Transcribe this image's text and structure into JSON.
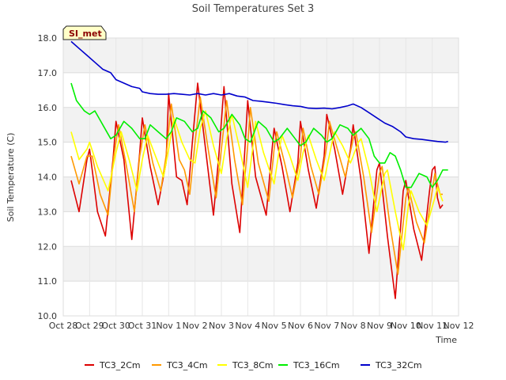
{
  "chart_data": {
    "type": "line",
    "title": "Soil Temperatures Set 3",
    "xlabel": "Time",
    "ylabel": "Soil Temperature (C)",
    "station_label": "SI_met",
    "ylim": [
      10.0,
      18.0
    ],
    "y_ticks": [
      "10.0",
      "11.0",
      "12.0",
      "13.0",
      "14.0",
      "15.0",
      "16.0",
      "17.0",
      "18.0"
    ],
    "xlim": [
      0,
      15
    ],
    "x_ticks": [
      "Oct 28",
      "Oct 29",
      "Oct 30",
      "Oct 31",
      "Nov 1",
      "Nov 2",
      "Nov 3",
      "Nov 4",
      "Nov 5",
      "Nov 6",
      "Nov 7",
      "Nov 8",
      "Nov 9",
      "Nov 10",
      "Nov 11",
      "Nov 12"
    ],
    "x_unit": "days after Oct 28 (tick i = day i)",
    "grid": true,
    "legend_position": "bottom",
    "series": [
      {
        "name": "TC3_2Cm",
        "color": "#dd0000",
        "points": [
          [
            0.3,
            13.9
          ],
          [
            0.6,
            13.0
          ],
          [
            0.9,
            14.5
          ],
          [
            1.0,
            14.8
          ],
          [
            1.3,
            13.0
          ],
          [
            1.6,
            12.3
          ],
          [
            1.9,
            14.6
          ],
          [
            2.0,
            15.6
          ],
          [
            2.3,
            14.5
          ],
          [
            2.6,
            12.2
          ],
          [
            2.9,
            14.7
          ],
          [
            3.0,
            15.7
          ],
          [
            3.3,
            14.3
          ],
          [
            3.6,
            13.2
          ],
          [
            3.9,
            14.4
          ],
          [
            4.0,
            16.4
          ],
          [
            4.3,
            14.0
          ],
          [
            4.5,
            13.9
          ],
          [
            4.7,
            13.2
          ],
          [
            4.9,
            15.0
          ],
          [
            5.1,
            16.7
          ],
          [
            5.4,
            14.8
          ],
          [
            5.7,
            12.9
          ],
          [
            5.9,
            14.6
          ],
          [
            6.1,
            16.6
          ],
          [
            6.4,
            13.8
          ],
          [
            6.7,
            12.4
          ],
          [
            6.9,
            14.9
          ],
          [
            7.0,
            16.2
          ],
          [
            7.3,
            14.0
          ],
          [
            7.7,
            12.9
          ],
          [
            7.9,
            14.6
          ],
          [
            8.0,
            15.4
          ],
          [
            8.3,
            14.3
          ],
          [
            8.6,
            13.0
          ],
          [
            8.9,
            14.4
          ],
          [
            9.0,
            15.6
          ],
          [
            9.3,
            14.2
          ],
          [
            9.6,
            13.1
          ],
          [
            9.9,
            14.6
          ],
          [
            10.0,
            15.8
          ],
          [
            10.3,
            14.8
          ],
          [
            10.6,
            13.5
          ],
          [
            10.9,
            14.8
          ],
          [
            11.0,
            15.5
          ],
          [
            11.3,
            13.9
          ],
          [
            11.6,
            11.8
          ],
          [
            11.9,
            14.2
          ],
          [
            12.0,
            14.4
          ],
          [
            12.3,
            12.3
          ],
          [
            12.6,
            10.5
          ],
          [
            12.9,
            13.6
          ],
          [
            13.0,
            13.9
          ],
          [
            13.3,
            12.5
          ],
          [
            13.6,
            11.6
          ],
          [
            13.9,
            13.6
          ],
          [
            14.0,
            14.2
          ],
          [
            14.1,
            14.3
          ],
          [
            14.2,
            13.4
          ],
          [
            14.3,
            13.1
          ],
          [
            14.4,
            13.2
          ]
        ]
      },
      {
        "name": "TC3_4Cm",
        "color": "#ff9900",
        "points": [
          [
            0.3,
            14.6
          ],
          [
            0.6,
            13.8
          ],
          [
            0.9,
            14.6
          ],
          [
            1.1,
            14.6
          ],
          [
            1.4,
            13.5
          ],
          [
            1.7,
            12.9
          ],
          [
            1.9,
            14.5
          ],
          [
            2.1,
            15.5
          ],
          [
            2.4,
            14.3
          ],
          [
            2.7,
            13.0
          ],
          [
            2.9,
            14.6
          ],
          [
            3.1,
            15.5
          ],
          [
            3.4,
            14.4
          ],
          [
            3.7,
            13.6
          ],
          [
            3.9,
            14.6
          ],
          [
            4.1,
            16.1
          ],
          [
            4.4,
            14.5
          ],
          [
            4.6,
            14.2
          ],
          [
            4.8,
            13.5
          ],
          [
            5.0,
            15.0
          ],
          [
            5.2,
            16.3
          ],
          [
            5.5,
            14.8
          ],
          [
            5.8,
            13.4
          ],
          [
            6.0,
            14.8
          ],
          [
            6.2,
            16.2
          ],
          [
            6.5,
            14.5
          ],
          [
            6.8,
            13.2
          ],
          [
            7.0,
            14.9
          ],
          [
            7.1,
            16.0
          ],
          [
            7.4,
            14.4
          ],
          [
            7.8,
            13.3
          ],
          [
            8.0,
            14.8
          ],
          [
            8.1,
            15.3
          ],
          [
            8.4,
            14.4
          ],
          [
            8.7,
            13.4
          ],
          [
            9.0,
            14.6
          ],
          [
            9.1,
            15.4
          ],
          [
            9.4,
            14.3
          ],
          [
            9.7,
            13.5
          ],
          [
            10.0,
            14.9
          ],
          [
            10.1,
            15.6
          ],
          [
            10.4,
            14.8
          ],
          [
            10.7,
            14.0
          ],
          [
            11.0,
            15.1
          ],
          [
            11.1,
            15.3
          ],
          [
            11.4,
            14.0
          ],
          [
            11.7,
            12.4
          ],
          [
            12.0,
            14.1
          ],
          [
            12.1,
            14.3
          ],
          [
            12.4,
            12.6
          ],
          [
            12.7,
            11.2
          ],
          [
            13.0,
            13.4
          ],
          [
            13.1,
            13.7
          ],
          [
            13.4,
            12.7
          ],
          [
            13.7,
            12.1
          ],
          [
            14.0,
            13.6
          ],
          [
            14.1,
            14.1
          ],
          [
            14.2,
            13.8
          ],
          [
            14.3,
            13.5
          ],
          [
            14.4,
            13.5
          ]
        ]
      },
      {
        "name": "TC3_8Cm",
        "color": "#ffff00",
        "points": [
          [
            0.3,
            15.3
          ],
          [
            0.6,
            14.5
          ],
          [
            0.9,
            14.8
          ],
          [
            1.0,
            15.0
          ],
          [
            1.3,
            14.3
          ],
          [
            1.7,
            13.6
          ],
          [
            2.0,
            14.7
          ],
          [
            2.2,
            15.3
          ],
          [
            2.5,
            14.5
          ],
          [
            2.8,
            13.6
          ],
          [
            3.0,
            14.5
          ],
          [
            3.2,
            15.2
          ],
          [
            3.5,
            14.6
          ],
          [
            3.8,
            14.0
          ],
          [
            4.0,
            14.8
          ],
          [
            4.2,
            15.7
          ],
          [
            4.5,
            15.0
          ],
          [
            4.8,
            14.5
          ],
          [
            5.0,
            14.4
          ],
          [
            5.2,
            15.4
          ],
          [
            5.4,
            15.9
          ],
          [
            5.7,
            14.9
          ],
          [
            6.0,
            14.1
          ],
          [
            6.2,
            15.1
          ],
          [
            6.4,
            15.8
          ],
          [
            6.7,
            14.8
          ],
          [
            7.0,
            13.7
          ],
          [
            7.2,
            14.9
          ],
          [
            7.3,
            15.6
          ],
          [
            7.6,
            14.7
          ],
          [
            8.0,
            13.8
          ],
          [
            8.2,
            14.8
          ],
          [
            8.3,
            15.2
          ],
          [
            8.6,
            14.6
          ],
          [
            8.9,
            13.9
          ],
          [
            9.1,
            14.7
          ],
          [
            9.3,
            15.2
          ],
          [
            9.6,
            14.5
          ],
          [
            9.9,
            13.9
          ],
          [
            10.2,
            15.0
          ],
          [
            10.3,
            15.3
          ],
          [
            10.6,
            14.9
          ],
          [
            10.9,
            14.4
          ],
          [
            11.2,
            15.0
          ],
          [
            11.3,
            15.1
          ],
          [
            11.6,
            14.2
          ],
          [
            11.9,
            13.0
          ],
          [
            12.2,
            14.1
          ],
          [
            12.3,
            14.2
          ],
          [
            12.6,
            13.0
          ],
          [
            12.9,
            11.9
          ],
          [
            13.1,
            13.2
          ],
          [
            13.2,
            13.6
          ],
          [
            13.5,
            13.0
          ],
          [
            13.8,
            12.6
          ],
          [
            14.1,
            13.4
          ],
          [
            14.2,
            13.7
          ],
          [
            14.3,
            13.5
          ],
          [
            14.4,
            13.3
          ]
        ]
      },
      {
        "name": "TC3_16Cm",
        "color": "#00ee00",
        "points": [
          [
            0.3,
            16.7
          ],
          [
            0.5,
            16.2
          ],
          [
            0.8,
            15.9
          ],
          [
            1.0,
            15.8
          ],
          [
            1.2,
            15.9
          ],
          [
            1.5,
            15.5
          ],
          [
            1.8,
            15.1
          ],
          [
            2.0,
            15.2
          ],
          [
            2.3,
            15.6
          ],
          [
            2.6,
            15.4
          ],
          [
            2.9,
            15.1
          ],
          [
            3.1,
            15.1
          ],
          [
            3.3,
            15.5
          ],
          [
            3.6,
            15.3
          ],
          [
            3.9,
            15.1
          ],
          [
            4.1,
            15.3
          ],
          [
            4.3,
            15.7
          ],
          [
            4.6,
            15.6
          ],
          [
            4.9,
            15.3
          ],
          [
            5.1,
            15.4
          ],
          [
            5.3,
            15.9
          ],
          [
            5.6,
            15.7
          ],
          [
            5.9,
            15.3
          ],
          [
            6.1,
            15.4
          ],
          [
            6.4,
            15.8
          ],
          [
            6.7,
            15.5
          ],
          [
            6.9,
            15.1
          ],
          [
            7.1,
            15.0
          ],
          [
            7.4,
            15.6
          ],
          [
            7.7,
            15.4
          ],
          [
            8.0,
            15.0
          ],
          [
            8.2,
            15.1
          ],
          [
            8.5,
            15.4
          ],
          [
            8.8,
            15.1
          ],
          [
            9.0,
            14.9
          ],
          [
            9.2,
            15.0
          ],
          [
            9.5,
            15.4
          ],
          [
            9.8,
            15.2
          ],
          [
            10.0,
            15.0
          ],
          [
            10.2,
            15.1
          ],
          [
            10.5,
            15.5
          ],
          [
            10.8,
            15.4
          ],
          [
            11.0,
            15.2
          ],
          [
            11.3,
            15.4
          ],
          [
            11.6,
            15.1
          ],
          [
            11.8,
            14.6
          ],
          [
            12.0,
            14.4
          ],
          [
            12.2,
            14.4
          ],
          [
            12.4,
            14.7
          ],
          [
            12.6,
            14.6
          ],
          [
            12.8,
            14.2
          ],
          [
            13.0,
            13.7
          ],
          [
            13.2,
            13.7
          ],
          [
            13.5,
            14.1
          ],
          [
            13.8,
            14.0
          ],
          [
            14.0,
            13.7
          ],
          [
            14.2,
            13.9
          ],
          [
            14.4,
            14.2
          ],
          [
            14.6,
            14.2
          ]
        ]
      },
      {
        "name": "TC3_32Cm",
        "color": "#0000cc",
        "points": [
          [
            0.3,
            17.9
          ],
          [
            0.6,
            17.7
          ],
          [
            0.9,
            17.5
          ],
          [
            1.2,
            17.3
          ],
          [
            1.5,
            17.1
          ],
          [
            1.8,
            17.0
          ],
          [
            2.0,
            16.8
          ],
          [
            2.3,
            16.7
          ],
          [
            2.6,
            16.6
          ],
          [
            2.9,
            16.55
          ],
          [
            3.0,
            16.45
          ],
          [
            3.3,
            16.4
          ],
          [
            3.6,
            16.38
          ],
          [
            3.9,
            16.38
          ],
          [
            4.2,
            16.4
          ],
          [
            4.5,
            16.38
          ],
          [
            4.8,
            16.36
          ],
          [
            5.1,
            16.4
          ],
          [
            5.4,
            16.36
          ],
          [
            5.7,
            16.4
          ],
          [
            6.0,
            16.36
          ],
          [
            6.3,
            16.4
          ],
          [
            6.6,
            16.33
          ],
          [
            6.9,
            16.3
          ],
          [
            7.2,
            16.2
          ],
          [
            7.5,
            16.18
          ],
          [
            7.8,
            16.15
          ],
          [
            8.1,
            16.12
          ],
          [
            8.4,
            16.08
          ],
          [
            8.7,
            16.05
          ],
          [
            9.0,
            16.03
          ],
          [
            9.3,
            15.98
          ],
          [
            9.6,
            15.97
          ],
          [
            9.9,
            15.98
          ],
          [
            10.2,
            15.96
          ],
          [
            10.5,
            16.0
          ],
          [
            10.8,
            16.05
          ],
          [
            11.0,
            16.1
          ],
          [
            11.3,
            16.0
          ],
          [
            11.6,
            15.85
          ],
          [
            11.9,
            15.7
          ],
          [
            12.2,
            15.55
          ],
          [
            12.5,
            15.45
          ],
          [
            12.8,
            15.3
          ],
          [
            13.0,
            15.15
          ],
          [
            13.3,
            15.1
          ],
          [
            13.6,
            15.08
          ],
          [
            13.9,
            15.05
          ],
          [
            14.2,
            15.02
          ],
          [
            14.5,
            15.0
          ],
          [
            14.6,
            15.02
          ]
        ]
      }
    ]
  }
}
